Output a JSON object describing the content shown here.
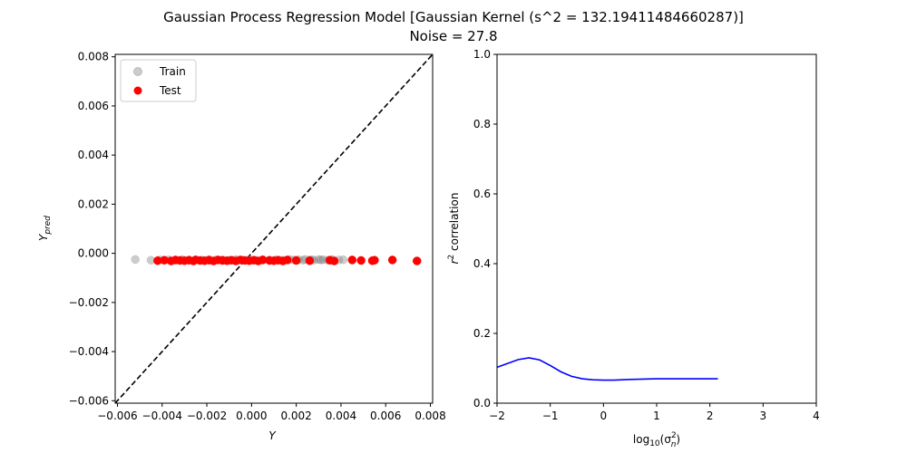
{
  "figure": {
    "title_line1": "Gaussian Process Regression Model [Gaussian Kernel (s^2 = 132.19411484660287)]",
    "title_line2": "Noise = 27.8"
  },
  "chart_data": [
    {
      "type": "scatter",
      "xlabel": "Y",
      "ylabel": "Y_pred",
      "xlim": [
        -0.0061,
        0.0081
      ],
      "ylim": [
        -0.0061,
        0.0081
      ],
      "xticks": [
        -0.006,
        -0.004,
        -0.002,
        0.0,
        0.002,
        0.004,
        0.006,
        0.008
      ],
      "xtick_labels": [
        "−0.006",
        "−0.004",
        "−0.002",
        "0.000",
        "0.002",
        "0.004",
        "0.006",
        "0.008"
      ],
      "yticks": [
        -0.006,
        -0.004,
        -0.002,
        0.0,
        0.002,
        0.004,
        0.006,
        0.008
      ],
      "ytick_labels": [
        "−0.006",
        "−0.004",
        "−0.002",
        "0.000",
        "0.002",
        "0.004",
        "0.006",
        "0.008"
      ],
      "legend_position": "top-left",
      "reference_line": {
        "style": "dashed",
        "color": "#000000",
        "from": [
          -0.0061,
          -0.0061
        ],
        "to": [
          0.0081,
          0.0081
        ]
      },
      "series": [
        {
          "name": "Train",
          "color": "#808080",
          "alpha": 0.4,
          "x": [
            -0.0052,
            -0.0045,
            -0.0041,
            -0.0037,
            -0.0034,
            -0.0031,
            -0.0028,
            -0.0025,
            -0.0022,
            -0.0019,
            -0.0016,
            -0.0013,
            -0.001,
            -0.0007,
            -0.0004,
            -0.0001,
            0.0002,
            0.0005,
            0.0008,
            0.0011,
            0.0014,
            0.0017,
            0.0019,
            0.0021,
            0.0023,
            0.0024,
            0.0026,
            0.0027,
            0.0028,
            0.003,
            0.0031,
            0.0032,
            0.0034,
            0.0036,
            0.0039,
            0.0041
          ],
          "y": [
            -0.00025,
            -0.00028,
            -0.00027,
            -0.00026,
            -0.00028,
            -0.00025,
            -0.00027,
            -0.00026,
            -0.00028,
            -0.00025,
            -0.00027,
            -0.00026,
            -0.00028,
            -0.00025,
            -0.00027,
            -0.00026,
            -0.00028,
            -0.00025,
            -0.00027,
            -0.00026,
            -0.00028,
            -0.00025,
            -0.00027,
            -0.00026,
            -0.00028,
            -0.00025,
            -0.00027,
            -0.00026,
            -0.00028,
            -0.00025,
            -0.00027,
            -0.00026,
            -0.00028,
            -0.00025,
            -0.00027,
            -0.00026
          ]
        },
        {
          "name": "Test",
          "color": "#ff0000",
          "alpha": 1.0,
          "x": [
            -0.0042,
            -0.0039,
            -0.0036,
            -0.0034,
            -0.0032,
            -0.003,
            -0.0028,
            -0.0026,
            -0.0025,
            -0.0023,
            -0.0021,
            -0.0019,
            -0.0017,
            -0.0015,
            -0.0013,
            -0.0011,
            -0.0009,
            -0.0007,
            -0.0005,
            -0.0003,
            -0.0001,
            0.0001,
            0.0003,
            0.0005,
            0.0008,
            0.001,
            0.0012,
            0.0014,
            0.0016,
            0.002,
            0.0026,
            0.0035,
            0.0037,
            0.0045,
            0.0049,
            0.0054,
            0.0055,
            0.0063,
            0.0074
          ],
          "y": [
            -0.0003,
            -0.00028,
            -0.00031,
            -0.00027,
            -0.00029,
            -0.0003,
            -0.00028,
            -0.00031,
            -0.00027,
            -0.00029,
            -0.0003,
            -0.00028,
            -0.00031,
            -0.00027,
            -0.00029,
            -0.0003,
            -0.00028,
            -0.00031,
            -0.00027,
            -0.00029,
            -0.0003,
            -0.00028,
            -0.00031,
            -0.00027,
            -0.00029,
            -0.0003,
            -0.00028,
            -0.00031,
            -0.00027,
            -0.00029,
            -0.0003,
            -0.00028,
            -0.00031,
            -0.00027,
            -0.00029,
            -0.0003,
            -0.00028,
            -0.00027,
            -0.00031
          ]
        }
      ]
    },
    {
      "type": "line",
      "xlabel": "log10(σn²)",
      "xlabel_main": "log",
      "xlabel_sub": "10",
      "xlabel_paren_open": "(σ",
      "xlabel_sup": "2",
      "xlabel_n": "n",
      "xlabel_paren_close": ")",
      "ylabel": "r² correlation",
      "ylabel_main": "r",
      "ylabel_sup": "2",
      "ylabel_rest": " correlation",
      "xlim": [
        -2,
        4
      ],
      "ylim": [
        0.0,
        1.0
      ],
      "xticks": [
        -2,
        -1,
        0,
        1,
        2,
        3,
        4
      ],
      "xtick_labels": [
        "−2",
        "−1",
        "0",
        "1",
        "2",
        "3",
        "4"
      ],
      "yticks": [
        0.0,
        0.2,
        0.4,
        0.6,
        0.8,
        1.0
      ],
      "ytick_labels": [
        "0.0",
        "0.2",
        "0.4",
        "0.6",
        "0.8",
        "1.0"
      ],
      "series": [
        {
          "color": "#0000ff",
          "x": [
            -2.0,
            -1.8,
            -1.6,
            -1.4,
            -1.2,
            -1.0,
            -0.8,
            -0.6,
            -0.4,
            -0.2,
            0.0,
            0.2,
            0.5,
            1.0,
            1.5,
            2.0,
            2.15
          ],
          "y": [
            0.103,
            0.114,
            0.125,
            0.13,
            0.124,
            0.108,
            0.09,
            0.077,
            0.07,
            0.067,
            0.066,
            0.066,
            0.068,
            0.07,
            0.07,
            0.07,
            0.07
          ]
        }
      ]
    }
  ]
}
